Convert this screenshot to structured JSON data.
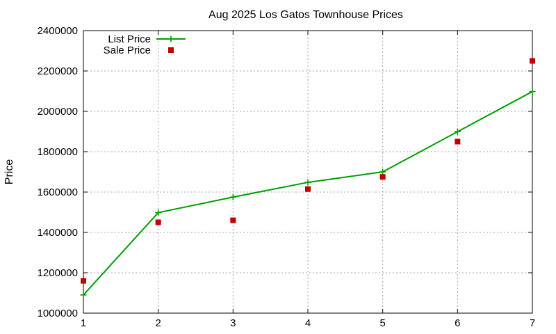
{
  "chart_data": {
    "type": "line",
    "title": "Aug 2025 Los Gatos Townhouse Prices",
    "xlabel": "",
    "ylabel": "Price",
    "x": [
      1,
      2,
      3,
      4,
      5,
      6,
      7
    ],
    "xlim": [
      1,
      7
    ],
    "ylim": [
      1000000,
      2400000
    ],
    "x_ticks": [
      1,
      2,
      3,
      4,
      5,
      6,
      7
    ],
    "y_ticks": [
      1000000,
      1200000,
      1400000,
      1600000,
      1800000,
      2000000,
      2200000,
      2400000
    ],
    "grid": true,
    "legend_position": "top-left",
    "series": [
      {
        "name": "List Price",
        "style": "line-with-plus-markers",
        "color": "#009e00",
        "values": [
          1090000,
          1498000,
          1575000,
          1648000,
          1700000,
          1899000,
          2098000
        ]
      },
      {
        "name": "Sale Price",
        "style": "square-points",
        "color": "#c00000",
        "values": [
          1160000,
          1450000,
          1460000,
          1615000,
          1675000,
          1850000,
          2250000
        ]
      }
    ]
  }
}
